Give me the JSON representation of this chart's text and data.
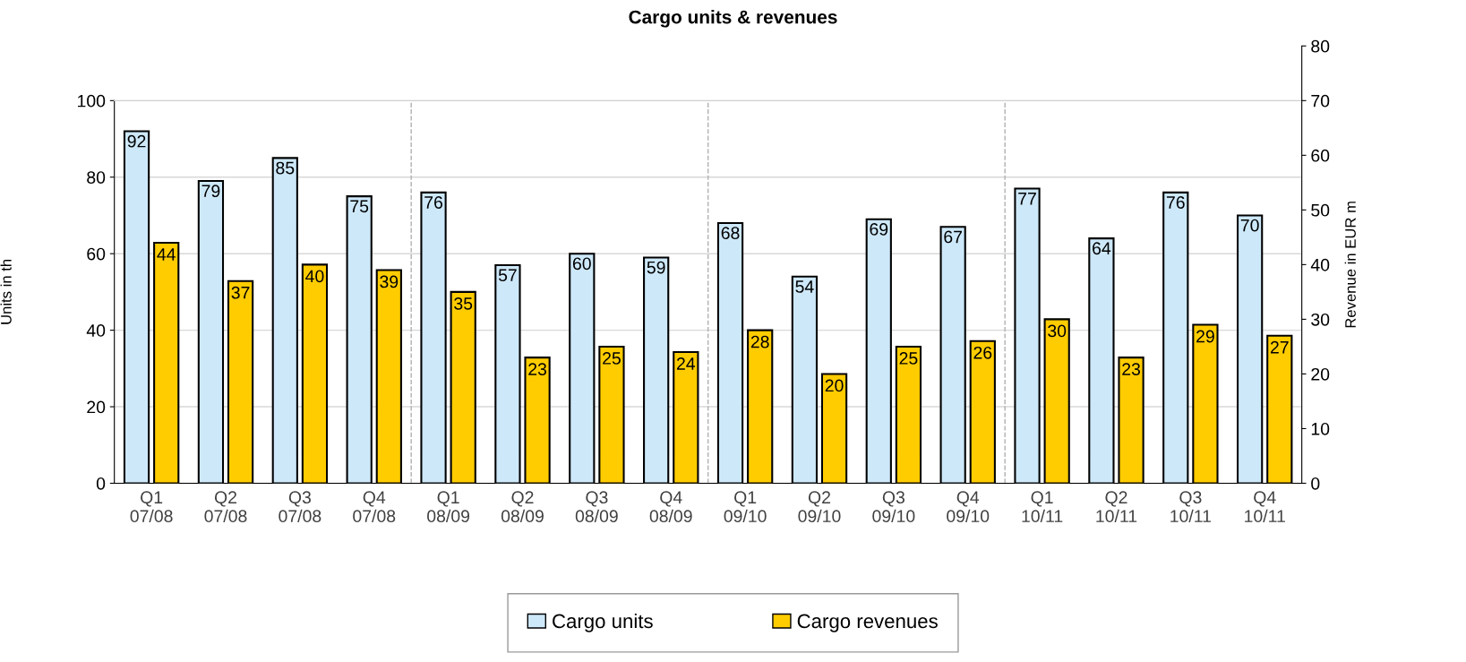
{
  "chart_data": {
    "type": "bar",
    "title": "Cargo units & revenues",
    "ylabel": "Units in th",
    "y2label": "Revenue in EUR m",
    "categories": [
      "Q1\n07/08",
      "Q2\n07/08",
      "Q3\n07/08",
      "Q4\n07/08",
      "Q1\n08/09",
      "Q2\n08/09",
      "Q3\n08/09",
      "Q4\n08/09",
      "Q1\n09/10",
      "Q2\n09/10",
      "Q3\n09/10",
      "Q4\n09/10",
      "Q1\n10/11",
      "Q2\n10/11",
      "Q3\n10/11",
      "Q4\n10/11"
    ],
    "series": [
      {
        "name": "Cargo units",
        "color": "#cde8f9",
        "values": [
          92,
          79,
          85,
          75,
          76,
          57,
          60,
          59,
          68,
          54,
          69,
          67,
          77,
          64,
          76,
          70
        ]
      },
      {
        "name": "Cargo revenues",
        "color": "#ffcc00",
        "axis": "y2",
        "values": [
          44,
          37,
          40,
          39,
          35,
          23,
          25,
          24,
          28,
          20,
          25,
          26,
          30,
          23,
          29,
          27
        ]
      }
    ],
    "ylim": [
      0,
      100
    ],
    "yticks": [
      0,
      20,
      40,
      60,
      80,
      100
    ],
    "y2lim": [
      0,
      80
    ],
    "y2ticks": [
      0,
      10,
      20,
      30,
      40,
      50,
      60,
      70,
      80
    ],
    "data_labels": true,
    "grid": "y",
    "legend": "bottom"
  }
}
